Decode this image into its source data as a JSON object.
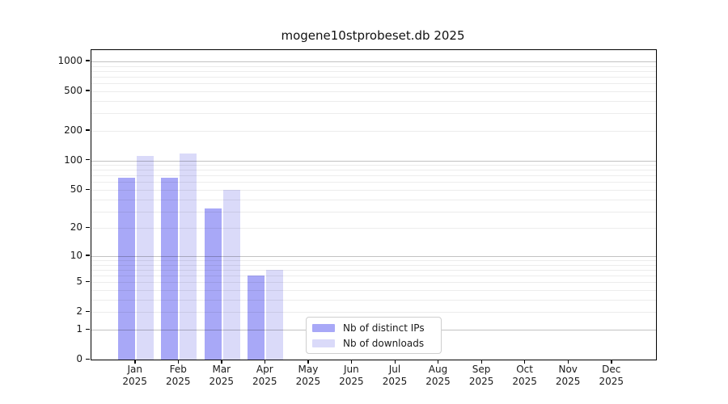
{
  "title": "mogene10stprobeset.db 2025",
  "chart_data": {
    "type": "bar",
    "title": "mogene10stprobeset.db 2025",
    "categories": [
      "Jan",
      "Feb",
      "Mar",
      "Apr",
      "May",
      "Jun",
      "Jul",
      "Aug",
      "Sep",
      "Oct",
      "Nov",
      "Dec"
    ],
    "year": "2025",
    "series": [
      {
        "name": "Nb of distinct IPs",
        "color": "#a8a8f7",
        "values": [
          67,
          67,
          32,
          6,
          0,
          0,
          0,
          0,
          0,
          0,
          0,
          0
        ]
      },
      {
        "name": "Nb of downloads",
        "color": "#dadaf9",
        "values": [
          110,
          118,
          50,
          7,
          0,
          0,
          0,
          0,
          0,
          0,
          0,
          0
        ]
      }
    ],
    "xlabel": "",
    "ylabel": "",
    "yscale": "log10(value+1)",
    "yticks": [
      0,
      1,
      2,
      5,
      10,
      20,
      50,
      100,
      200,
      500,
      1000
    ],
    "ylim": [
      0,
      1300
    ],
    "gridlines": {
      "major": [
        1,
        10,
        100,
        1000
      ]
    },
    "grid": true,
    "legend_position": "inside-bottom-center"
  }
}
